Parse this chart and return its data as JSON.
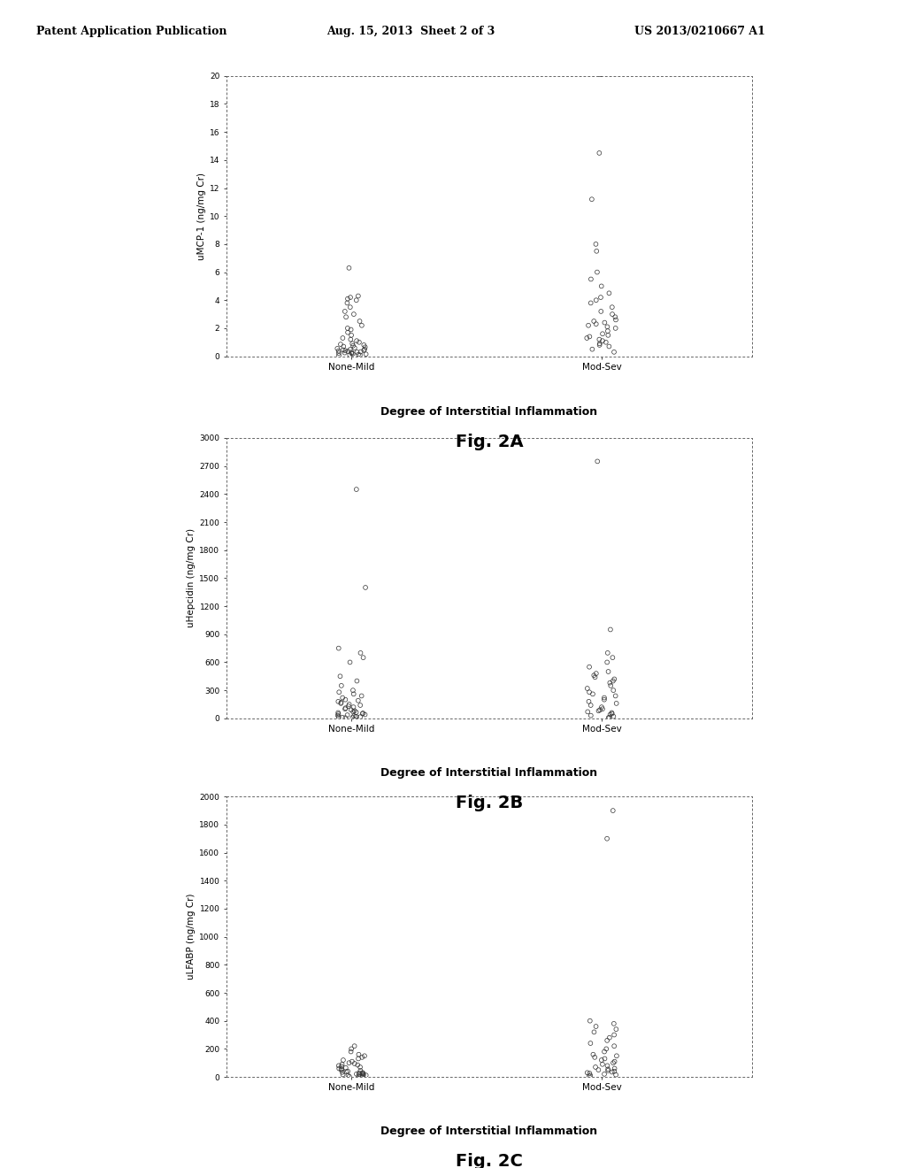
{
  "header_left": "Patent Application Publication",
  "header_center": "Aug. 15, 2013  Sheet 2 of 3",
  "header_right": "US 2013/0210667 A1",
  "background_color": "#ffffff",
  "plots": [
    {
      "fig_label": "Fig. 2A",
      "ylabel": "uMCP-1 (ng/mg Cr)",
      "xlabel": "Degree of Interstitial Inflammation",
      "ylim": [
        0,
        20
      ],
      "yticks": [
        0,
        2,
        4,
        6,
        8,
        10,
        12,
        14,
        16,
        18,
        20
      ],
      "xtick_labels": [
        "None-Mild",
        "Mod-Sev"
      ],
      "none_mild": [
        0.05,
        0.08,
        0.1,
        0.12,
        0.15,
        0.18,
        0.2,
        0.22,
        0.25,
        0.28,
        0.3,
        0.32,
        0.35,
        0.38,
        0.4,
        0.42,
        0.45,
        0.48,
        0.5,
        0.55,
        0.6,
        0.65,
        0.7,
        0.75,
        0.8,
        0.85,
        0.9,
        1.0,
        1.1,
        1.2,
        1.3,
        1.5,
        1.7,
        1.9,
        2.0,
        2.2,
        2.5,
        2.8,
        3.0,
        3.2,
        3.5,
        3.8,
        4.0,
        4.1,
        4.2,
        4.3,
        6.3
      ],
      "mod_sev": [
        0.3,
        0.5,
        0.7,
        0.8,
        0.9,
        1.0,
        1.1,
        1.2,
        1.3,
        1.4,
        1.5,
        1.6,
        1.8,
        2.0,
        2.1,
        2.2,
        2.3,
        2.4,
        2.5,
        2.6,
        2.8,
        3.0,
        3.2,
        3.5,
        3.8,
        4.0,
        4.2,
        4.5,
        5.0,
        5.5,
        6.0,
        7.5,
        8.0,
        11.2,
        14.5,
        20.1
      ]
    },
    {
      "fig_label": "Fig. 2B",
      "ylabel": "uHepcidin (ng/mg Cr)",
      "xlabel": "Degree of Interstitial Inflammation",
      "ylim": [
        0,
        3000
      ],
      "yticks": [
        0,
        300,
        600,
        900,
        1200,
        1500,
        1800,
        2100,
        2400,
        2700,
        3000
      ],
      "xtick_labels": [
        "None-Mild",
        "Mod-Sev"
      ],
      "none_mild": [
        5,
        8,
        10,
        12,
        15,
        18,
        20,
        25,
        30,
        35,
        40,
        45,
        50,
        55,
        60,
        65,
        70,
        80,
        90,
        100,
        110,
        120,
        130,
        140,
        150,
        160,
        170,
        180,
        190,
        200,
        220,
        240,
        260,
        280,
        300,
        350,
        400,
        450,
        600,
        650,
        700,
        750,
        1400,
        2450
      ],
      "mod_sev": [
        5,
        10,
        20,
        30,
        40,
        50,
        60,
        70,
        80,
        90,
        100,
        120,
        140,
        160,
        180,
        200,
        220,
        240,
        260,
        280,
        300,
        320,
        350,
        380,
        400,
        420,
        440,
        460,
        480,
        500,
        550,
        600,
        650,
        700,
        950,
        2750
      ]
    },
    {
      "fig_label": "Fig. 2C",
      "ylabel": "uLFABP (ng/mg Cr)",
      "xlabel": "Degree of Interstitial Inflammation",
      "ylim": [
        0,
        2000
      ],
      "yticks": [
        0,
        200,
        400,
        600,
        800,
        1000,
        1200,
        1400,
        1600,
        1800,
        2000
      ],
      "xtick_labels": [
        "None-Mild",
        "Mod-Sev"
      ],
      "none_mild": [
        2,
        4,
        6,
        8,
        10,
        12,
        14,
        16,
        18,
        20,
        22,
        25,
        28,
        30,
        33,
        36,
        40,
        45,
        50,
        55,
        60,
        65,
        70,
        75,
        80,
        85,
        90,
        95,
        100,
        110,
        120,
        130,
        140,
        150,
        160,
        180,
        200,
        220
      ],
      "mod_sev": [
        5,
        10,
        15,
        20,
        25,
        30,
        35,
        40,
        45,
        50,
        55,
        60,
        70,
        80,
        90,
        100,
        110,
        120,
        130,
        140,
        150,
        160,
        180,
        200,
        220,
        240,
        260,
        280,
        300,
        320,
        340,
        360,
        380,
        400,
        1700,
        1900
      ]
    }
  ]
}
